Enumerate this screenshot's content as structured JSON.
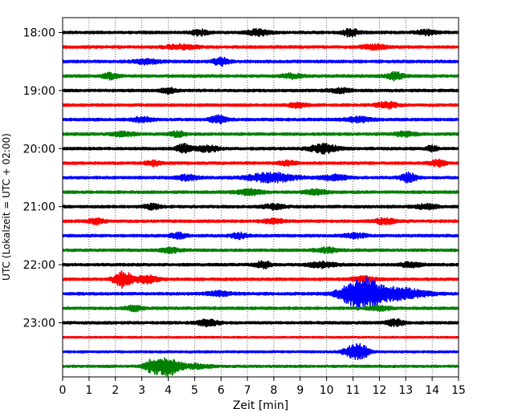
{
  "chart_data": {
    "type": "line",
    "title": "",
    "xlabel": "Zeit  [min]",
    "ylabel": "UTC (Lokalzeit = UTC + 02:00)",
    "xlim": [
      0,
      15
    ],
    "x_ticks": [
      "0",
      "1",
      "2",
      "3",
      "4",
      "5",
      "6",
      "7",
      "8",
      "9",
      "10",
      "11",
      "12",
      "13",
      "14",
      "15"
    ],
    "y_ticks": [
      "18:00",
      "19:00",
      "20:00",
      "21:00",
      "22:00",
      "23:00"
    ],
    "grid": "vertical dotted at each minute",
    "legend": "none",
    "colors": [
      "#000000",
      "#ff0000",
      "#0000ff",
      "#008000"
    ],
    "rows_start": "18:00",
    "row_interval_minutes": 15,
    "traces": [
      {
        "start": "18:00",
        "color": "#000000",
        "amplitude": 0.18,
        "bursts": [
          [
            5.2,
            0.3,
            0.35
          ],
          [
            7.4,
            0.4,
            0.4
          ],
          [
            10.9,
            0.3,
            0.5
          ],
          [
            13.8,
            0.4,
            0.3
          ]
        ]
      },
      {
        "start": "18:15",
        "color": "#ff0000",
        "amplitude": 0.18,
        "bursts": [
          [
            4.5,
            0.6,
            0.3
          ],
          [
            11.8,
            0.5,
            0.3
          ]
        ]
      },
      {
        "start": "18:30",
        "color": "#0000ff",
        "amplitude": 0.18,
        "bursts": [
          [
            6.0,
            0.3,
            0.5
          ],
          [
            3.2,
            0.5,
            0.3
          ]
        ]
      },
      {
        "start": "18:45",
        "color": "#008000",
        "amplitude": 0.18,
        "bursts": [
          [
            1.8,
            0.3,
            0.4
          ],
          [
            8.7,
            0.4,
            0.3
          ],
          [
            12.6,
            0.3,
            0.5
          ]
        ]
      },
      {
        "start": "19:00",
        "color": "#000000",
        "amplitude": 0.18,
        "bursts": [
          [
            4.0,
            0.3,
            0.35
          ],
          [
            10.5,
            0.4,
            0.3
          ]
        ]
      },
      {
        "start": "19:15",
        "color": "#ff0000",
        "amplitude": 0.18,
        "bursts": [
          [
            8.9,
            0.3,
            0.3
          ],
          [
            12.3,
            0.4,
            0.4
          ]
        ]
      },
      {
        "start": "19:30",
        "color": "#0000ff",
        "amplitude": 0.18,
        "bursts": [
          [
            3.0,
            0.4,
            0.3
          ],
          [
            5.9,
            0.3,
            0.5
          ],
          [
            11.2,
            0.5,
            0.3
          ]
        ]
      },
      {
        "start": "19:45",
        "color": "#008000",
        "amplitude": 0.18,
        "bursts": [
          [
            2.3,
            0.4,
            0.3
          ],
          [
            4.4,
            0.3,
            0.35
          ],
          [
            13.0,
            0.4,
            0.3
          ]
        ]
      },
      {
        "start": "20:00",
        "color": "#000000",
        "amplitude": 0.18,
        "bursts": [
          [
            4.6,
            0.3,
            0.55
          ],
          [
            5.5,
            0.4,
            0.4
          ],
          [
            9.9,
            0.5,
            0.6
          ],
          [
            14.0,
            0.2,
            0.45
          ]
        ]
      },
      {
        "start": "20:15",
        "color": "#ff0000",
        "amplitude": 0.18,
        "bursts": [
          [
            3.4,
            0.3,
            0.3
          ],
          [
            8.5,
            0.3,
            0.3
          ],
          [
            14.2,
            0.3,
            0.4
          ]
        ]
      },
      {
        "start": "20:30",
        "color": "#0000ff",
        "amplitude": 0.18,
        "bursts": [
          [
            4.7,
            0.4,
            0.35
          ],
          [
            7.9,
            0.9,
            0.6
          ],
          [
            10.3,
            0.5,
            0.35
          ],
          [
            13.1,
            0.3,
            0.6
          ]
        ]
      },
      {
        "start": "20:45",
        "color": "#008000",
        "amplitude": 0.18,
        "bursts": [
          [
            7.1,
            0.5,
            0.35
          ],
          [
            9.6,
            0.4,
            0.35
          ]
        ]
      },
      {
        "start": "21:00",
        "color": "#000000",
        "amplitude": 0.18,
        "bursts": [
          [
            3.4,
            0.3,
            0.3
          ],
          [
            8.0,
            0.4,
            0.3
          ],
          [
            13.8,
            0.4,
            0.3
          ]
        ]
      },
      {
        "start": "21:15",
        "color": "#ff0000",
        "amplitude": 0.18,
        "bursts": [
          [
            1.3,
            0.3,
            0.35
          ],
          [
            8.0,
            0.4,
            0.3
          ],
          [
            12.2,
            0.4,
            0.35
          ]
        ]
      },
      {
        "start": "21:30",
        "color": "#0000ff",
        "amplitude": 0.18,
        "bursts": [
          [
            4.4,
            0.3,
            0.35
          ],
          [
            6.7,
            0.3,
            0.35
          ],
          [
            11.1,
            0.4,
            0.3
          ]
        ]
      },
      {
        "start": "21:45",
        "color": "#008000",
        "amplitude": 0.18,
        "bursts": [
          [
            4.1,
            0.4,
            0.3
          ],
          [
            10.0,
            0.4,
            0.3
          ]
        ]
      },
      {
        "start": "22:00",
        "color": "#000000",
        "amplitude": 0.18,
        "bursts": [
          [
            7.6,
            0.3,
            0.45
          ],
          [
            9.8,
            0.5,
            0.35
          ],
          [
            13.2,
            0.4,
            0.3
          ]
        ]
      },
      {
        "start": "22:15",
        "color": "#ff0000",
        "amplitude": 0.18,
        "bursts": [
          [
            2.3,
            0.35,
            1.1
          ],
          [
            3.2,
            0.4,
            0.5
          ],
          [
            11.4,
            0.4,
            0.35
          ]
        ]
      },
      {
        "start": "22:30",
        "color": "#0000ff",
        "amplitude": 0.18,
        "bursts": [
          [
            11.3,
            0.7,
            2.2
          ],
          [
            12.7,
            1.0,
            0.8
          ],
          [
            5.9,
            0.5,
            0.3
          ]
        ]
      },
      {
        "start": "22:45",
        "color": "#008000",
        "amplitude": 0.18,
        "bursts": [
          [
            2.7,
            0.3,
            0.35
          ],
          [
            12.0,
            0.4,
            0.3
          ]
        ]
      },
      {
        "start": "23:00",
        "color": "#000000",
        "amplitude": 0.18,
        "bursts": [
          [
            5.5,
            0.4,
            0.4
          ],
          [
            12.6,
            0.3,
            0.45
          ]
        ]
      },
      {
        "start": "23:15",
        "color": "#ff0000",
        "amplitude": 0.12,
        "bursts": []
      },
      {
        "start": "23:30",
        "color": "#0000ff",
        "amplitude": 0.14,
        "bursts": [
          [
            10.9,
            0.3,
            0.6
          ],
          [
            11.3,
            0.3,
            0.9
          ]
        ]
      },
      {
        "start": "23:45",
        "color": "#008000",
        "amplitude": 0.16,
        "bursts": [
          [
            3.4,
            0.3,
            0.9
          ],
          [
            4.0,
            0.4,
            1.2
          ],
          [
            5.0,
            0.6,
            0.3
          ]
        ]
      }
    ]
  }
}
